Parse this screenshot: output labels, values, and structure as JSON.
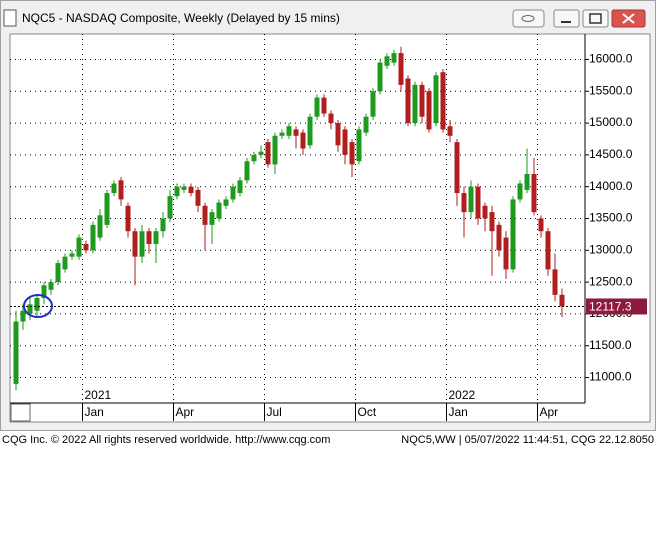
{
  "window_title": "NQC5 - NASDAQ Composite, Weekly (Delayed by 15 mins)",
  "footer_left": "CQG Inc. © 2022 All rights reserved worldwide. http://www.cqg.com",
  "footer_right": "NQC5,WW | 05/07/2022 11:44:51, CQG 22.12.8050",
  "chart_data": {
    "type": "candlestick",
    "categories": [
      null,
      null,
      null,
      null,
      null,
      null,
      null,
      null,
      null,
      null,
      "Jan",
      null,
      null,
      null,
      null,
      null,
      null,
      null,
      null,
      null,
      null,
      null,
      null,
      "Apr",
      null,
      null,
      null,
      null,
      null,
      null,
      null,
      null,
      null,
      null,
      null,
      null,
      "Jul",
      null,
      null,
      null,
      null,
      null,
      null,
      null,
      null,
      null,
      null,
      null,
      null,
      "Oct",
      null,
      null,
      null,
      null,
      null,
      null,
      null,
      null,
      null,
      null,
      null,
      null,
      "Jan",
      null,
      null,
      null,
      null,
      null,
      null,
      null,
      null,
      null,
      null,
      null,
      null,
      "Apr",
      null,
      null,
      null
    ],
    "year_labels": [
      null,
      null,
      null,
      null,
      null,
      null,
      null,
      null,
      null,
      null,
      "2021",
      null,
      null,
      null,
      null,
      null,
      null,
      null,
      null,
      null,
      null,
      null,
      null,
      null,
      null,
      null,
      null,
      null,
      null,
      null,
      null,
      null,
      null,
      null,
      null,
      null,
      null,
      null,
      null,
      null,
      null,
      null,
      null,
      null,
      null,
      null,
      null,
      null,
      null,
      null,
      null,
      null,
      null,
      null,
      null,
      null,
      null,
      null,
      null,
      null,
      null,
      null,
      "2022",
      null,
      null,
      null,
      null,
      null,
      null,
      null,
      null,
      null,
      null,
      null,
      null,
      null,
      null,
      null,
      null
    ],
    "open": [
      10900,
      11880,
      12000,
      12050,
      12250,
      12380,
      12500,
      12700,
      12900,
      12900,
      13100,
      13000,
      13200,
      13400,
      13900,
      14100,
      13700,
      13300,
      12900,
      13300,
      13100,
      13300,
      13500,
      13850,
      13950,
      14000,
      13950,
      13700,
      13400,
      13500,
      13700,
      13800,
      13900,
      14100,
      14400,
      14500,
      14700,
      14350,
      14800,
      14800,
      14900,
      14850,
      14650,
      15100,
      15400,
      15150,
      15000,
      14900,
      14700,
      14400,
      14850,
      15100,
      15500,
      15900,
      15950,
      16100,
      15700,
      15000,
      15600,
      15500,
      15000,
      15800,
      14950,
      14700,
      13900,
      13600,
      14000,
      13700,
      13600,
      13400,
      13200,
      12700,
      13800,
      13950,
      14200,
      13500,
      13300,
      12700,
      12300
    ],
    "high": [
      12050,
      12150,
      12250,
      12300,
      12500,
      12550,
      12850,
      12950,
      13000,
      13250,
      13150,
      13450,
      13650,
      13950,
      14100,
      14150,
      13750,
      13350,
      13400,
      13350,
      13350,
      13600,
      13950,
      14050,
      14050,
      14050,
      14000,
      13750,
      13650,
      13800,
      13850,
      14050,
      14150,
      14450,
      14550,
      14650,
      14750,
      14850,
      14900,
      15000,
      14950,
      14900,
      15150,
      15450,
      15450,
      15200,
      15050,
      14950,
      14750,
      14950,
      15150,
      15550,
      16000,
      16100,
      16150,
      16200,
      15750,
      15650,
      15650,
      15550,
      15800,
      15850,
      15050,
      14750,
      14000,
      14100,
      14050,
      13750,
      13700,
      13450,
      13300,
      13850,
      14100,
      14600,
      14450,
      13550,
      13350,
      12950,
      12400
    ],
    "low": [
      10800,
      11750,
      11900,
      11950,
      12150,
      12300,
      12450,
      12650,
      12850,
      12850,
      12950,
      12950,
      13150,
      13350,
      13850,
      13700,
      13200,
      12450,
      12800,
      12950,
      12800,
      13200,
      13450,
      13800,
      13900,
      13850,
      13600,
      13000,
      13100,
      13450,
      13650,
      13750,
      13850,
      14050,
      14350,
      14450,
      14300,
      14200,
      14750,
      14750,
      14600,
      14500,
      14600,
      15050,
      15100,
      14900,
      14550,
      14350,
      14150,
      14350,
      14800,
      15050,
      15450,
      15850,
      15900,
      15500,
      14950,
      14950,
      15000,
      14850,
      14950,
      14850,
      14700,
      13700,
      13200,
      13500,
      13400,
      13300,
      12600,
      12900,
      12550,
      12650,
      13750,
      13900,
      13550,
      13200,
      12600,
      12200,
      11950
    ],
    "close": [
      11880,
      12050,
      12150,
      12250,
      12450,
      12500,
      12800,
      12900,
      12950,
      13200,
      13000,
      13400,
      13550,
      13900,
      14050,
      13800,
      13300,
      12900,
      13300,
      13100,
      13300,
      13500,
      13850,
      14000,
      14000,
      13900,
      13700,
      13400,
      13600,
      13750,
      13800,
      14000,
      14100,
      14400,
      14500,
      14550,
      14350,
      14800,
      14850,
      14950,
      14800,
      14600,
      15100,
      15400,
      15150,
      15000,
      14650,
      14500,
      14350,
      14900,
      15100,
      15500,
      15950,
      16050,
      16100,
      15600,
      15000,
      15600,
      15100,
      14900,
      15750,
      14900,
      14800,
      13900,
      13600,
      14000,
      13500,
      13500,
      13300,
      13000,
      12700,
      13800,
      14050,
      14200,
      13600,
      13300,
      12700,
      12300,
      12117.3
    ],
    "up_color": "#1e9a1e",
    "down_color": "#b01e1e",
    "last_price": 12117.3,
    "last_price_color": "#8b1a3c",
    "ylim": [
      10600,
      16400
    ],
    "yticks": [
      {
        "value": 11000,
        "label": "11000.0"
      },
      {
        "value": 11500,
        "label": "11500.0"
      },
      {
        "value": 12000,
        "label": "12000.0"
      },
      {
        "value": 12500,
        "label": "12500.0"
      },
      {
        "value": 13000,
        "label": "13000.0"
      },
      {
        "value": 13500,
        "label": "13500.0"
      },
      {
        "value": 14000,
        "label": "14000.0"
      },
      {
        "value": 14500,
        "label": "14500.0"
      },
      {
        "value": 15000,
        "label": "15000.0"
      },
      {
        "value": 15500,
        "label": "15500.0"
      },
      {
        "value": 16000,
        "label": "16000.0"
      }
    ],
    "grid": true
  }
}
